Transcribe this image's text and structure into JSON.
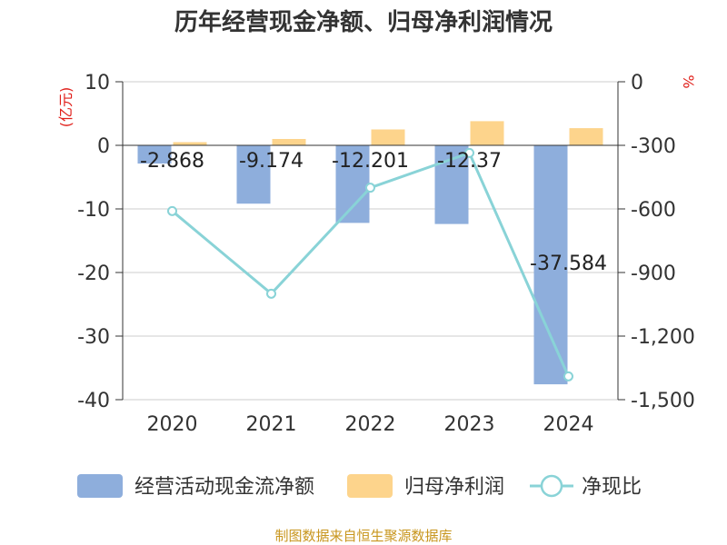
{
  "chart_data": {
    "type": "bar",
    "title": "历年经营现金净额、归母净利润情况",
    "categories": [
      "2020",
      "2021",
      "2022",
      "2023",
      "2024"
    ],
    "series": [
      {
        "name": "经营活动现金流净额",
        "type": "bar",
        "axis": "left",
        "color": "#8eaedc",
        "values": [
          -2.868,
          -9.174,
          -12.201,
          -12.37,
          -37.584
        ]
      },
      {
        "name": "归母净利润",
        "type": "bar",
        "axis": "left",
        "color": "#fdd48c",
        "values": [
          0.5,
          1.0,
          2.5,
          3.8,
          2.7
        ]
      },
      {
        "name": "净现比",
        "type": "line",
        "axis": "right",
        "color": "#89d3d7",
        "values": [
          -610,
          -1000,
          -500,
          -336,
          -1390
        ]
      }
    ],
    "data_labels": [
      "-2.868",
      "-9.174",
      "-12.201",
      "-12.37",
      "-37.584"
    ],
    "y_left": {
      "unit_label": "(亿元)",
      "min": -40,
      "max": 10,
      "ticks": [
        "10",
        "0",
        "-10",
        "-20",
        "-30",
        "-40"
      ]
    },
    "y_right": {
      "unit_label": "%",
      "min": -1500,
      "max": 0,
      "ticks": [
        "0",
        "-300",
        "-600",
        "-900",
        "-1,200",
        "-1,500"
      ]
    },
    "grid": true,
    "legend_position": "bottom",
    "source": "制图数据来自恒生聚源数据库"
  }
}
